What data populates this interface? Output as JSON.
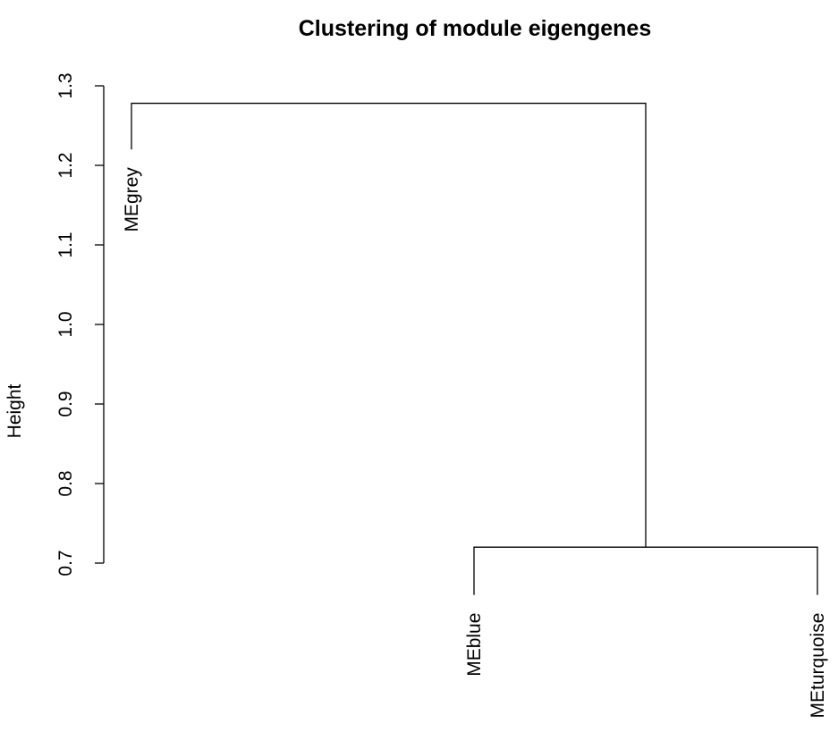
{
  "chart_data": {
    "type": "dendrogram",
    "title": "Clustering of module eigengenes",
    "ylabel": "Height",
    "xlabel": "",
    "ylim": [
      0.7,
      1.3
    ],
    "yticks": [
      "0.7",
      "0.8",
      "0.9",
      "1.0",
      "1.1",
      "1.2",
      "1.3"
    ],
    "leaves": [
      {
        "name": "MEgrey",
        "height": 1.22
      },
      {
        "name": "MEblue",
        "height": 0.66
      },
      {
        "name": "MEturquoise",
        "height": 0.66
      }
    ],
    "merges": [
      {
        "left": "MEblue",
        "right": "MEturquoise",
        "height": 0.72
      },
      {
        "left": "MEgrey",
        "right": "MEblue+MEturquoise",
        "height": 1.278
      }
    ],
    "grid": false,
    "legend": "none"
  }
}
